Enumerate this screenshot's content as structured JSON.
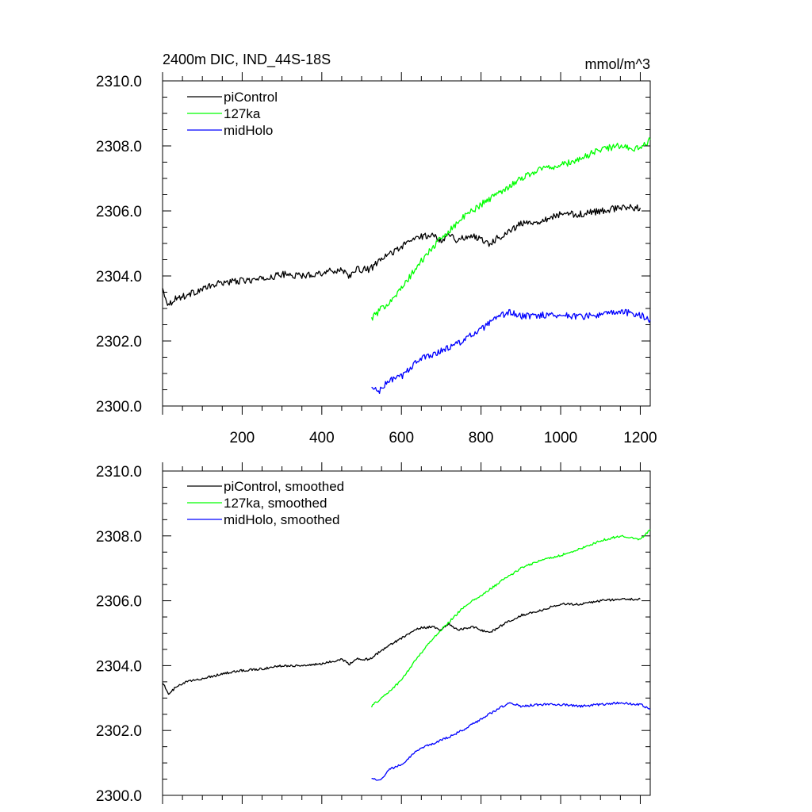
{
  "figure": {
    "title_left": "2400m DIC, IND_44S-18S",
    "title_right": "mmol/m^3"
  },
  "chart_data": [
    {
      "type": "line",
      "panel": "top",
      "title": "2400m DIC, IND_44S-18S",
      "units": "mmol/m^3",
      "xlim": [
        0,
        1225
      ],
      "ylim": [
        2300.0,
        2310.0
      ],
      "x_ticks": [
        200,
        400,
        600,
        800,
        1000,
        1200
      ],
      "x_tick_labels": [
        "200",
        "400",
        "600",
        "800",
        "1000",
        "1200"
      ],
      "y_ticks": [
        2300.0,
        2302.0,
        2304.0,
        2306.0,
        2308.0,
        2310.0
      ],
      "y_tick_labels": [
        "2300.0",
        "2302.0",
        "2304.0",
        "2306.0",
        "2308.0",
        "2310.0"
      ],
      "legend_position": "top-left",
      "series": [
        {
          "name": "piControl",
          "color": "#000000",
          "x": [
            0,
            15,
            30,
            60,
            100,
            150,
            200,
            250,
            300,
            350,
            400,
            450,
            470,
            490,
            520,
            560,
            600,
            640,
            680,
            700,
            720,
            740,
            780,
            820,
            860,
            900,
            950,
            1000,
            1050,
            1100,
            1150,
            1200
          ],
          "y": [
            2303.6,
            2303.1,
            2303.3,
            2303.4,
            2303.6,
            2303.8,
            2303.85,
            2303.9,
            2304.05,
            2304.0,
            2304.1,
            2304.2,
            2304.0,
            2304.2,
            2304.2,
            2304.6,
            2304.9,
            2305.2,
            2305.25,
            2305.1,
            2305.3,
            2305.1,
            2305.25,
            2305.0,
            2305.3,
            2305.6,
            2305.7,
            2305.9,
            2305.9,
            2306.0,
            2306.1,
            2306.1
          ]
        },
        {
          "name": "127ka",
          "color": "#00ff00",
          "x": [
            525,
            560,
            600,
            640,
            680,
            720,
            760,
            800,
            850,
            900,
            950,
            1000,
            1050,
            1100,
            1150,
            1200,
            1225
          ],
          "y": [
            2302.7,
            2303.1,
            2303.6,
            2304.3,
            2304.9,
            2305.4,
            2305.85,
            2306.2,
            2306.6,
            2307.0,
            2307.3,
            2307.4,
            2307.6,
            2307.9,
            2308.0,
            2307.9,
            2308.2
          ]
        },
        {
          "name": "midHolo",
          "color": "#0000ff",
          "x": [
            525,
            545,
            570,
            600,
            640,
            680,
            720,
            760,
            800,
            840,
            870,
            900,
            950,
            1000,
            1050,
            1100,
            1150,
            1200,
            1225
          ],
          "y": [
            2300.55,
            2300.45,
            2300.8,
            2300.9,
            2301.4,
            2301.6,
            2301.8,
            2302.05,
            2302.35,
            2302.7,
            2302.9,
            2302.75,
            2302.8,
            2302.8,
            2302.75,
            2302.8,
            2302.9,
            2302.8,
            2302.65
          ]
        }
      ]
    },
    {
      "type": "line",
      "panel": "bottom",
      "xlim": [
        0,
        1225
      ],
      "ylim": [
        2300.0,
        2310.0
      ],
      "x_ticks": [
        200,
        400,
        600,
        800,
        1000,
        1200
      ],
      "x_tick_labels": [],
      "y_ticks": [
        2300.0,
        2302.0,
        2304.0,
        2306.0,
        2308.0,
        2310.0
      ],
      "y_tick_labels": [
        "2300.0",
        "2302.0",
        "2304.0",
        "2306.0",
        "2308.0",
        "2310.0"
      ],
      "legend_position": "top-left",
      "series": [
        {
          "name": "piControl, smoothed",
          "color": "#000000",
          "x": [
            0,
            15,
            30,
            60,
            100,
            150,
            200,
            250,
            300,
            350,
            400,
            450,
            470,
            490,
            520,
            560,
            600,
            640,
            680,
            700,
            720,
            740,
            780,
            820,
            860,
            900,
            950,
            1000,
            1050,
            1100,
            1150,
            1200
          ],
          "y": [
            2303.5,
            2303.1,
            2303.3,
            2303.5,
            2303.6,
            2303.75,
            2303.85,
            2303.9,
            2304.0,
            2304.0,
            2304.05,
            2304.2,
            2304.05,
            2304.2,
            2304.2,
            2304.55,
            2304.85,
            2305.15,
            2305.2,
            2305.1,
            2305.3,
            2305.1,
            2305.2,
            2305.0,
            2305.3,
            2305.55,
            2305.7,
            2305.9,
            2305.9,
            2306.0,
            2306.05,
            2306.05
          ]
        },
        {
          "name": "127ka, smoothed",
          "color": "#00ff00",
          "x": [
            525,
            560,
            600,
            640,
            680,
            720,
            760,
            800,
            850,
            900,
            950,
            1000,
            1050,
            1100,
            1150,
            1200,
            1225
          ],
          "y": [
            2302.75,
            2303.1,
            2303.55,
            2304.25,
            2304.85,
            2305.35,
            2305.85,
            2306.15,
            2306.6,
            2307.0,
            2307.25,
            2307.4,
            2307.6,
            2307.85,
            2308.0,
            2307.9,
            2308.2
          ]
        },
        {
          "name": "midHolo, smoothed",
          "color": "#0000ff",
          "x": [
            525,
            545,
            570,
            600,
            640,
            680,
            720,
            760,
            800,
            840,
            870,
            900,
            950,
            1000,
            1050,
            1100,
            1150,
            1200,
            1225
          ],
          "y": [
            2300.55,
            2300.45,
            2300.8,
            2300.95,
            2301.4,
            2301.6,
            2301.8,
            2302.05,
            2302.35,
            2302.65,
            2302.85,
            2302.75,
            2302.8,
            2302.8,
            2302.75,
            2302.8,
            2302.85,
            2302.8,
            2302.65
          ]
        }
      ]
    }
  ]
}
